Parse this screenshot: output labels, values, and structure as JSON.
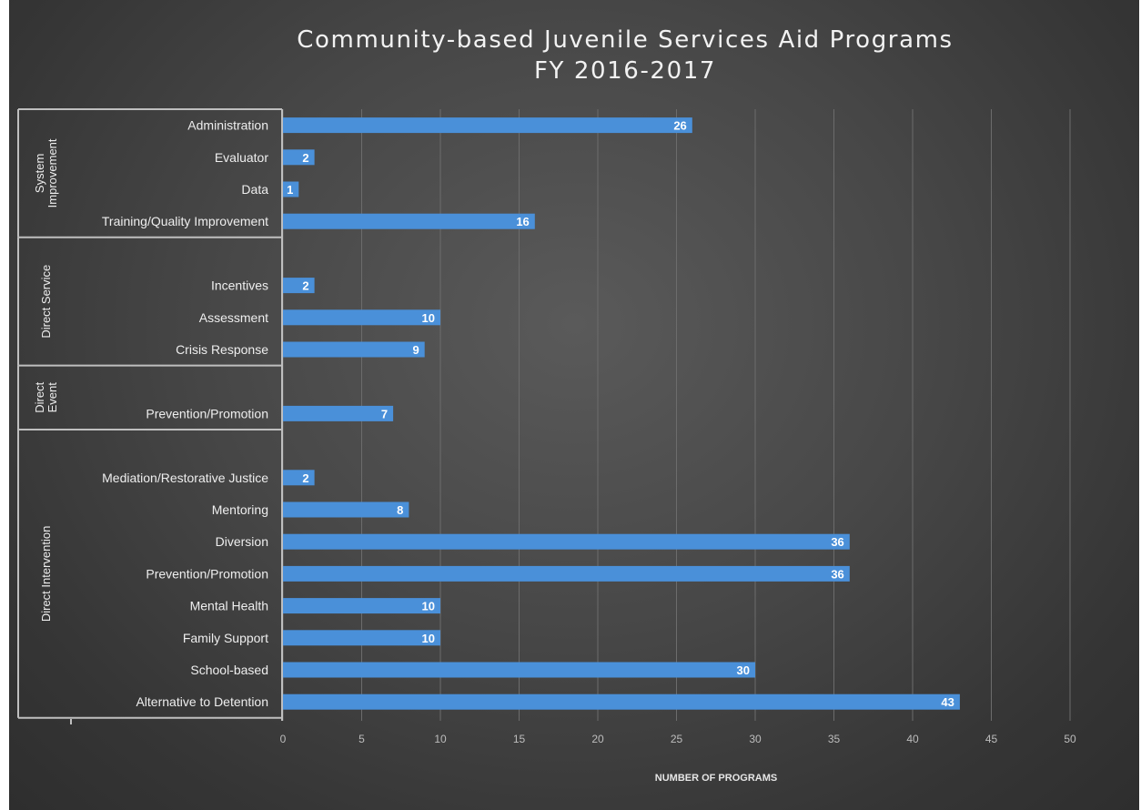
{
  "chart_data": {
    "type": "bar",
    "orientation": "horizontal",
    "title": "Community-based Juvenile Services Aid Programs",
    "subtitle": "FY 2016-2017",
    "xlabel": "NUMBER OF PROGRAMS",
    "ylabel": "",
    "xlim": [
      0,
      50
    ],
    "xticks": [
      "0",
      "5",
      "10",
      "15",
      "20",
      "25",
      "30",
      "35",
      "40",
      "45",
      "50"
    ],
    "grid": "vertical",
    "legend": "none",
    "bar_color": "#4a90d9",
    "background_color": "#3e3e3e",
    "groups": [
      {
        "name": "System Improvement",
        "name_lines": [
          "System",
          "Improvement"
        ],
        "categories": [
          {
            "label": "Administration",
            "value": 26
          },
          {
            "label": "Evaluator",
            "value": 2
          },
          {
            "label": "Data",
            "value": 1
          },
          {
            "label": "Training/Quality Improvement",
            "value": 16
          }
        ]
      },
      {
        "name": "Direct Service",
        "name_lines": [
          "Direct Service"
        ],
        "categories": [
          {
            "label": "",
            "value": null
          },
          {
            "label": "Incentives",
            "value": 2
          },
          {
            "label": "Assessment",
            "value": 10
          },
          {
            "label": "Crisis Response",
            "value": 9
          }
        ]
      },
      {
        "name": "Direct Event",
        "name_lines": [
          "Direct",
          "Event"
        ],
        "categories": [
          {
            "label": "",
            "value": null
          },
          {
            "label": "Prevention/Promotion",
            "value": 7
          }
        ]
      },
      {
        "name": "Direct Intervention",
        "name_lines": [
          "Direct Intervention"
        ],
        "categories": [
          {
            "label": "",
            "value": null
          },
          {
            "label": "Mediation/Restorative Justice",
            "value": 2
          },
          {
            "label": "Mentoring",
            "value": 8
          },
          {
            "label": "Diversion",
            "value": 36
          },
          {
            "label": "Prevention/Promotion",
            "value": 36
          },
          {
            "label": "Mental Health",
            "value": 10
          },
          {
            "label": "Family Support",
            "value": 10
          },
          {
            "label": "School-based",
            "value": 30
          },
          {
            "label": "Alternative to Detention",
            "value": 43
          }
        ]
      }
    ]
  }
}
